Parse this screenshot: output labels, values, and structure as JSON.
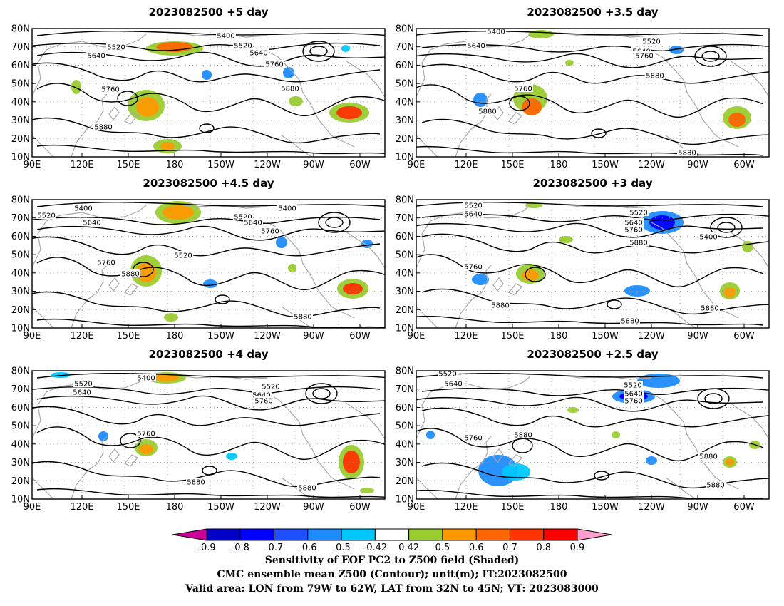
{
  "panels": [
    {
      "title": "2023082500 +5 day"
    },
    {
      "title": "2023082500 +3.5 day"
    },
    {
      "title": "2023082500 +4.5 day"
    },
    {
      "title": "2023082500 +3 day"
    },
    {
      "title": "2023082500 +4 day"
    },
    {
      "title": "2023082500 +2.5 day"
    }
  ],
  "axes": {
    "lat_labels": [
      "10N",
      "20N",
      "30N",
      "40N",
      "50N",
      "60N",
      "70N",
      "80N"
    ],
    "lon_labels": [
      "90E",
      "120E",
      "150E",
      "180",
      "150W",
      "120W",
      "90W",
      "60W"
    ]
  },
  "contour_labels": {
    "p0": [
      "5400",
      "5520",
      "5520",
      "5640",
      "5640",
      "5760",
      "5760",
      "5880",
      "5880"
    ],
    "p1": [
      "5400",
      "5520",
      "5640",
      "5640",
      "5760",
      "5760",
      "5880",
      "5880",
      "5880"
    ],
    "p2": [
      "5400",
      "5400",
      "5520",
      "5520",
      "5520",
      "5640",
      "5640",
      "5760",
      "5760",
      "5880",
      "5880"
    ],
    "p3": [
      "5520",
      "5520",
      "5640",
      "5640",
      "5760",
      "5760",
      "5400",
      "5880",
      "5880",
      "5880",
      "5880"
    ],
    "p4": [
      "5400",
      "5520",
      "5520",
      "5640",
      "5640",
      "5760",
      "5760",
      "5880",
      "5880"
    ],
    "p5": [
      "5520",
      "5640",
      "5520",
      "5640",
      "5760",
      "5760",
      "5880",
      "5880",
      "5880"
    ]
  },
  "colorbar": {
    "tick_labels": [
      "-0.9",
      "-0.8",
      "-0.7",
      "-0.6",
      "-0.5",
      "-0.42",
      "0.42",
      "0.5",
      "0.6",
      "0.7",
      "0.8",
      "0.9"
    ],
    "colors": [
      "#0000c8",
      "#0000ff",
      "#1e50ff",
      "#1e8cff",
      "#00c8ff",
      "#ffffff",
      "#9acd32",
      "#ff9900",
      "#ff6600",
      "#ff3300",
      "#ff0000"
    ],
    "low_end_color": "#cc0099",
    "high_end_color": "#ff9ecf"
  },
  "caption": {
    "line1": "Sensitivity of EOF PC2 to Z500 field (Shaded)",
    "line2": "CMC ensemble mean Z500 (Contour); unit(m); IT:2023082500",
    "line3": "Valid area: LON from 79W to 62W, LAT from 32N to 45N; VT: 2023083000"
  }
}
